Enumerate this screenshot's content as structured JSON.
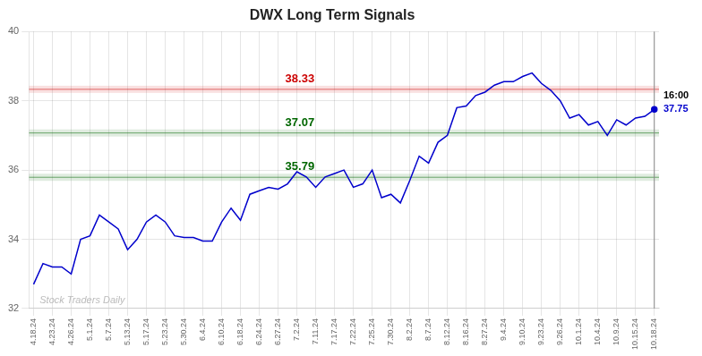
{
  "chart_data": {
    "type": "line",
    "title": "DWX Long Term Signals",
    "categories": [
      "4.18.24",
      null,
      "4.23.24",
      null,
      "4.26.24",
      null,
      "5.1.24",
      null,
      "5.7.24",
      null,
      "5.13.24",
      null,
      "5.17.24",
      null,
      "5.23.24",
      null,
      "5.30.24",
      null,
      "6.4.24",
      null,
      "6.10.24",
      null,
      "6.18.24",
      null,
      "6.24.24",
      null,
      "6.27.24",
      null,
      "7.2.24",
      null,
      "7.11.24",
      null,
      "7.17.24",
      null,
      "7.22.24",
      null,
      "7.25.24",
      null,
      "7.30.24",
      null,
      "8.2.24",
      null,
      "8.7.24",
      null,
      "8.12.24",
      null,
      "8.16.24",
      null,
      "8.27.24",
      null,
      "9.4.24",
      null,
      "9.10.24",
      null,
      "9.23.24",
      null,
      "9.26.24",
      null,
      "10.1.24",
      null,
      "10.4.24",
      null,
      "10.9.24",
      null,
      "10.15.24",
      null,
      "10.18.24"
    ],
    "values": [
      32.7,
      33.3,
      33.2,
      33.2,
      33.0,
      34.0,
      34.1,
      34.7,
      34.5,
      34.3,
      33.7,
      34.0,
      34.5,
      34.7,
      34.5,
      34.1,
      34.05,
      34.05,
      33.95,
      33.95,
      34.5,
      34.9,
      34.55,
      35.3,
      35.4,
      35.5,
      35.45,
      35.6,
      35.95,
      35.8,
      35.5,
      35.8,
      35.9,
      36.0,
      35.5,
      35.6,
      36.0,
      35.2,
      35.3,
      35.05,
      35.7,
      36.4,
      36.2,
      36.8,
      37.0,
      37.8,
      37.85,
      38.15,
      38.25,
      38.45,
      38.55,
      38.55,
      38.7,
      38.8,
      38.5,
      38.3,
      38.0,
      37.5,
      37.6,
      37.3,
      37.4,
      37.0,
      37.45,
      37.3,
      37.5,
      37.55,
      37.75
    ],
    "color": "#0000cc",
    "ylim": [
      32,
      40
    ],
    "yticks": [
      32,
      34,
      36,
      38,
      40
    ],
    "grid": true,
    "hlines": [
      {
        "y": 38.33,
        "label": "38.33",
        "color": "#cc0000"
      },
      {
        "y": 37.07,
        "label": "37.07",
        "color": "#006600"
      },
      {
        "y": 35.79,
        "label": "35.79",
        "color": "#006600"
      }
    ],
    "watermark": "Stock Traders Daily",
    "last_point_labels": [
      "16:00",
      "37.75"
    ]
  }
}
